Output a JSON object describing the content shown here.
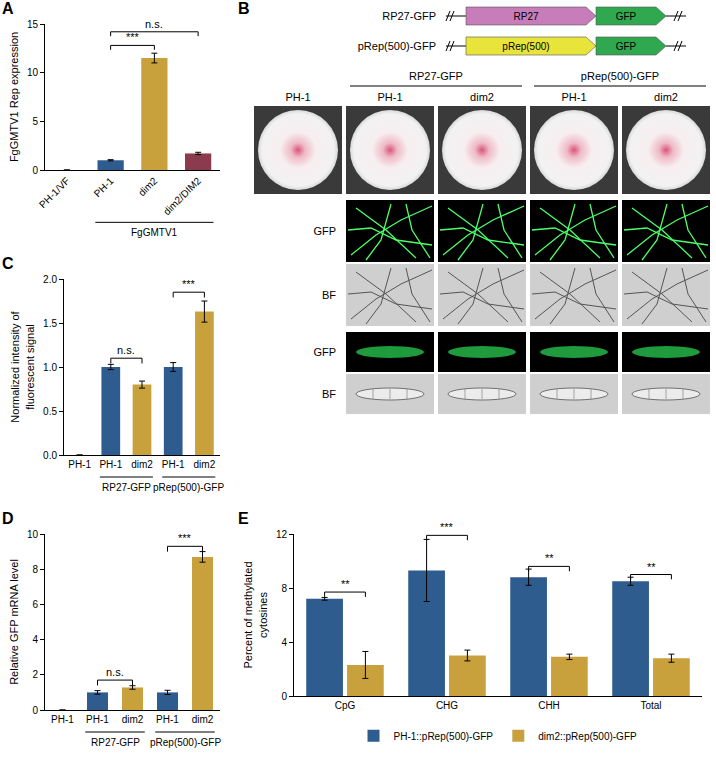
{
  "chart_data": [
    {
      "letter": "A",
      "type": "bar",
      "categories": [
        "PH-1/VF",
        "PH-1",
        "dim2",
        "dim2/DIM2"
      ],
      "values": [
        0,
        1.0,
        11.5,
        1.7
      ],
      "errors": [
        0,
        0.06,
        0.5,
        0.12
      ],
      "colors": [
        "#2F5C8F",
        "#2F5C8F",
        "#C9A13C",
        "#8C3B4E"
      ],
      "y_label": "FgGMTV1 Rep expression",
      "ylim": [
        0,
        15
      ],
      "yticks": [
        0,
        5,
        10,
        15
      ],
      "grid": false,
      "groups": [
        {
          "label": "FgGMTV1",
          "from": 1,
          "to": 3
        }
      ],
      "comparisons": [
        {
          "from": 1,
          "to": 2,
          "label": "***",
          "y": 12.8
        },
        {
          "from": 1,
          "to": 3,
          "label": "n.s.",
          "y": 14.2
        }
      ]
    },
    {
      "letter": "C",
      "type": "bar",
      "categories": [
        "PH-1",
        "PH-1",
        "dim2",
        "PH-1",
        "dim2"
      ],
      "values": [
        0,
        1.0,
        0.8,
        1.0,
        1.63
      ],
      "errors": [
        0,
        0.03,
        0.04,
        0.05,
        0.12
      ],
      "colors": [
        "#2F5C8F",
        "#2F5C8F",
        "#C9A13C",
        "#2F5C8F",
        "#C9A13C"
      ],
      "y_label": "Normalized intensity of fluorescent signal",
      "ylim": [
        0,
        2
      ],
      "yticks": [
        {
          "value": 0,
          "label": "0.0"
        },
        {
          "value": 0.5,
          "label": "0.5"
        },
        {
          "value": 1,
          "label": "1.0"
        },
        {
          "value": 1.5,
          "label": "1.5"
        },
        {
          "value": 2,
          "label": "2.0"
        }
      ],
      "grid": false,
      "groups": [
        {
          "label": "RP27-GFP",
          "from": 1,
          "to": 2
        },
        {
          "label": "pRep(500)-GFP",
          "from": 3,
          "to": 4
        }
      ],
      "comparisons": [
        {
          "from": 1,
          "to": 2,
          "label": "n.s.",
          "y": 1.1
        },
        {
          "from": 3,
          "to": 4,
          "label": "***",
          "y": 1.85
        }
      ]
    },
    {
      "letter": "D",
      "type": "bar",
      "categories": [
        "PH-1",
        "PH-1",
        "dim2",
        "PH-1",
        "dim2"
      ],
      "values": [
        0,
        1.0,
        1.28,
        1.0,
        8.7
      ],
      "errors": [
        0,
        0.1,
        0.1,
        0.12,
        0.3
      ],
      "colors": [
        "#2F5C8F",
        "#2F5C8F",
        "#C9A13C",
        "#2F5C8F",
        "#C9A13C"
      ],
      "y_label": "Relative GFP mRNA level",
      "ylim": [
        0,
        10
      ],
      "yticks": [
        0,
        2,
        4,
        6,
        8,
        10
      ],
      "grid": false,
      "groups": [
        {
          "label": "RP27-GFP",
          "from": 1,
          "to": 2
        },
        {
          "label": "pRep(500)-GFP",
          "from": 3,
          "to": 4
        }
      ],
      "comparisons": [
        {
          "from": 1,
          "to": 2,
          "label": "n.s.",
          "y": 1.7
        },
        {
          "from": 3,
          "to": 4,
          "label": "***",
          "y": 9.3
        }
      ]
    },
    {
      "letter": "E",
      "type": "bar",
      "categories": [
        "CpG",
        "CHG",
        "CHH",
        "Total"
      ],
      "series": [
        {
          "name": "PH-1::pRep(500)-GFP",
          "color": "#2F5C8F",
          "values": [
            7.2,
            9.3,
            8.8,
            8.5
          ],
          "errors": [
            0.1,
            2.3,
            0.6,
            0.3
          ]
        },
        {
          "name": "dim2::pRep(500)-GFP",
          "color": "#C9A13C",
          "values": [
            2.3,
            3.0,
            2.9,
            2.8
          ],
          "errors": [
            1.0,
            0.4,
            0.2,
            0.3
          ]
        }
      ],
      "y_label": "Percent of methylated cytosines",
      "ylim": [
        0,
        12
      ],
      "yticks": [
        0,
        4,
        8,
        12
      ],
      "grid": false,
      "legend": "bottom",
      "comparisons": [
        {
          "category": 0,
          "label": "**",
          "y": 7.7
        },
        {
          "category": 1,
          "label": "***",
          "y": 11.9
        },
        {
          "category": 2,
          "label": "**",
          "y": 9.6
        },
        {
          "category": 3,
          "label": "**",
          "y": 9.0
        }
      ]
    }
  ],
  "diagram": {
    "letter": "B",
    "constructs": [
      {
        "name": "RP27-GFP",
        "parts": [
          "RP27",
          "GFP"
        ]
      },
      {
        "name": "pRep(500)-GFP",
        "parts": [
          "pRep(500)",
          "GFP"
        ]
      }
    ],
    "columns": [
      "PH-1",
      "PH-1",
      "dim2",
      "PH-1",
      "dim2"
    ],
    "column_groups": [
      {
        "label": "RP27-GFP",
        "from": 1,
        "to": 2
      },
      {
        "label": "pRep(500)-GFP",
        "from": 3,
        "to": 4
      }
    ],
    "rows": [
      "GFP",
      "BF",
      "GFP",
      "BF"
    ]
  }
}
